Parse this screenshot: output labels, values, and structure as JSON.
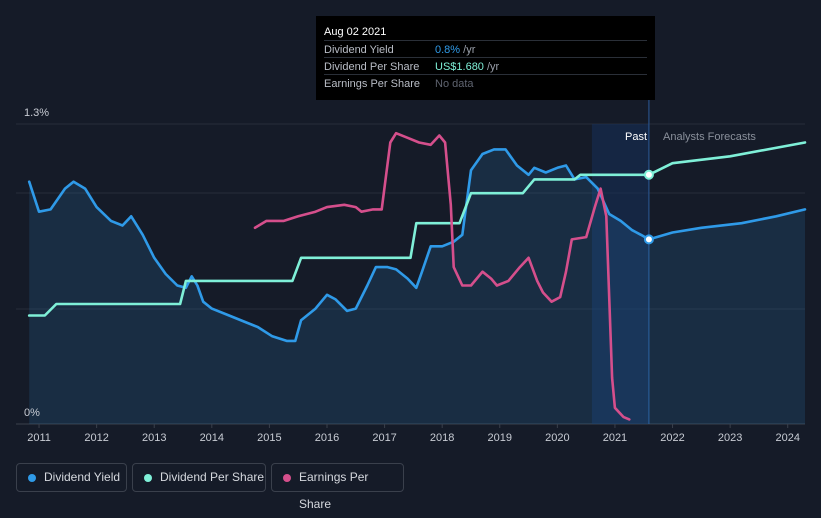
{
  "tooltip": {
    "date": "Aug 02 2021",
    "rows": [
      {
        "label": "Dividend Yield",
        "value": "0.8%",
        "unit": " /yr",
        "color": "#2f9ae8"
      },
      {
        "label": "Dividend Per Share",
        "value": "US$1.680",
        "unit": " /yr",
        "color": "#7ff0d8"
      },
      {
        "label": "Earnings Per Share",
        "value": "No data",
        "unit": "",
        "color": "#5f6470"
      }
    ]
  },
  "legend": [
    {
      "label": "Dividend Yield",
      "color": "#2f9ae8"
    },
    {
      "label": "Dividend Per Share",
      "color": "#7ff0d8"
    },
    {
      "label": "Earnings Per Share",
      "color": "#d54f8c"
    }
  ],
  "chart_data": {
    "type": "line",
    "y_axis_labels": [
      "1.3%",
      "0%"
    ],
    "ylim": [
      0,
      1.3
    ],
    "xlim": [
      2010.6,
      2024.3
    ],
    "x_ticks": [
      2011,
      2012,
      2013,
      2014,
      2015,
      2016,
      2017,
      2018,
      2019,
      2020,
      2021,
      2022,
      2023,
      2024
    ],
    "x_tick_labels": [
      "2011",
      "2012",
      "2013",
      "2014",
      "2015",
      "2016",
      "2017",
      "2018",
      "2019",
      "2020",
      "2021",
      "2022",
      "2023",
      "2024"
    ],
    "grid": true,
    "past_label": "Past",
    "forecast_label": "Analysts Forecasts",
    "forecast_start": 2021.59,
    "forecast_band_start": 2020.6,
    "series": [
      {
        "name": "Dividend Yield",
        "color": "#2f9ae8",
        "fill": true,
        "points": [
          [
            2010.83,
            1.05
          ],
          [
            2011.0,
            0.92
          ],
          [
            2011.2,
            0.93
          ],
          [
            2011.45,
            1.02
          ],
          [
            2011.6,
            1.05
          ],
          [
            2011.8,
            1.02
          ],
          [
            2012.0,
            0.94
          ],
          [
            2012.25,
            0.88
          ],
          [
            2012.45,
            0.86
          ],
          [
            2012.6,
            0.9
          ],
          [
            2012.8,
            0.82
          ],
          [
            2013.0,
            0.72
          ],
          [
            2013.2,
            0.65
          ],
          [
            2013.4,
            0.6
          ],
          [
            2013.55,
            0.59
          ],
          [
            2013.65,
            0.64
          ],
          [
            2013.75,
            0.6
          ],
          [
            2013.85,
            0.53
          ],
          [
            2014.0,
            0.5
          ],
          [
            2014.3,
            0.47
          ],
          [
            2014.6,
            0.44
          ],
          [
            2014.8,
            0.42
          ],
          [
            2015.05,
            0.38
          ],
          [
            2015.3,
            0.36
          ],
          [
            2015.45,
            0.36
          ],
          [
            2015.55,
            0.45
          ],
          [
            2015.8,
            0.5
          ],
          [
            2016.0,
            0.56
          ],
          [
            2016.15,
            0.54
          ],
          [
            2016.35,
            0.49
          ],
          [
            2016.5,
            0.5
          ],
          [
            2016.7,
            0.6
          ],
          [
            2016.85,
            0.68
          ],
          [
            2017.05,
            0.68
          ],
          [
            2017.2,
            0.67
          ],
          [
            2017.4,
            0.63
          ],
          [
            2017.55,
            0.59
          ],
          [
            2017.65,
            0.66
          ],
          [
            2017.8,
            0.77
          ],
          [
            2018.0,
            0.77
          ],
          [
            2018.2,
            0.79
          ],
          [
            2018.35,
            0.82
          ],
          [
            2018.5,
            1.1
          ],
          [
            2018.7,
            1.17
          ],
          [
            2018.9,
            1.19
          ],
          [
            2019.1,
            1.19
          ],
          [
            2019.3,
            1.12
          ],
          [
            2019.5,
            1.08
          ],
          [
            2019.6,
            1.11
          ],
          [
            2019.8,
            1.09
          ],
          [
            2020.0,
            1.11
          ],
          [
            2020.15,
            1.12
          ],
          [
            2020.3,
            1.06
          ],
          [
            2020.5,
            1.07
          ],
          [
            2020.7,
            1.02
          ],
          [
            2020.9,
            0.91
          ],
          [
            2021.1,
            0.88
          ],
          [
            2021.3,
            0.84
          ],
          [
            2021.45,
            0.82
          ],
          [
            2021.59,
            0.8
          ],
          [
            2022.0,
            0.83
          ],
          [
            2022.5,
            0.85
          ],
          [
            2023.2,
            0.87
          ],
          [
            2023.8,
            0.9
          ],
          [
            2024.3,
            0.93
          ]
        ]
      },
      {
        "name": "Dividend Per Share",
        "color": "#7ff0d8",
        "fill": false,
        "points": [
          [
            2010.83,
            0.47
          ],
          [
            2011.1,
            0.47
          ],
          [
            2011.3,
            0.52
          ],
          [
            2013.3,
            0.52
          ],
          [
            2013.45,
            0.52
          ],
          [
            2013.55,
            0.62
          ],
          [
            2015.4,
            0.62
          ],
          [
            2015.55,
            0.72
          ],
          [
            2017.45,
            0.72
          ],
          [
            2017.55,
            0.87
          ],
          [
            2018.3,
            0.87
          ],
          [
            2018.5,
            1.0
          ],
          [
            2019.4,
            1.0
          ],
          [
            2019.6,
            1.06
          ],
          [
            2020.3,
            1.06
          ],
          [
            2020.4,
            1.08
          ],
          [
            2021.59,
            1.08
          ],
          [
            2022.0,
            1.13
          ],
          [
            2023.0,
            1.16
          ],
          [
            2024.3,
            1.22
          ]
        ]
      },
      {
        "name": "Earnings Per Share",
        "color": "#d54f8c",
        "fill": false,
        "points": [
          [
            2014.75,
            0.85
          ],
          [
            2014.95,
            0.88
          ],
          [
            2015.25,
            0.88
          ],
          [
            2015.5,
            0.9
          ],
          [
            2015.8,
            0.92
          ],
          [
            2016.0,
            0.94
          ],
          [
            2016.3,
            0.95
          ],
          [
            2016.5,
            0.94
          ],
          [
            2016.6,
            0.92
          ],
          [
            2016.8,
            0.93
          ],
          [
            2016.95,
            0.93
          ],
          [
            2017.1,
            1.22
          ],
          [
            2017.2,
            1.26
          ],
          [
            2017.4,
            1.24
          ],
          [
            2017.6,
            1.22
          ],
          [
            2017.8,
            1.21
          ],
          [
            2017.95,
            1.25
          ],
          [
            2018.05,
            1.22
          ],
          [
            2018.15,
            0.95
          ],
          [
            2018.2,
            0.68
          ],
          [
            2018.35,
            0.6
          ],
          [
            2018.5,
            0.6
          ],
          [
            2018.7,
            0.66
          ],
          [
            2018.85,
            0.63
          ],
          [
            2018.95,
            0.6
          ],
          [
            2019.15,
            0.62
          ],
          [
            2019.35,
            0.68
          ],
          [
            2019.5,
            0.72
          ],
          [
            2019.65,
            0.62
          ],
          [
            2019.75,
            0.57
          ],
          [
            2019.9,
            0.53
          ],
          [
            2020.05,
            0.55
          ],
          [
            2020.15,
            0.66
          ],
          [
            2020.25,
            0.8
          ],
          [
            2020.5,
            0.81
          ],
          [
            2020.65,
            0.94
          ],
          [
            2020.75,
            1.02
          ],
          [
            2020.85,
            0.9
          ],
          [
            2020.9,
            0.55
          ],
          [
            2020.95,
            0.2
          ],
          [
            2021.0,
            0.07
          ],
          [
            2021.15,
            0.03
          ],
          [
            2021.25,
            0.02
          ]
        ]
      }
    ]
  }
}
